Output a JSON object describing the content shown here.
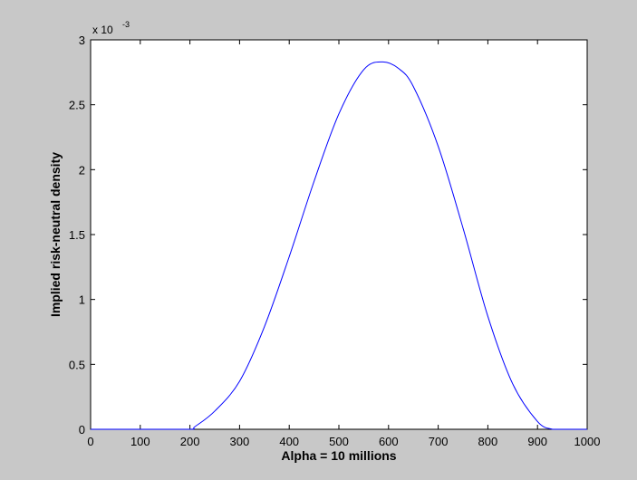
{
  "chart_data": {
    "type": "line",
    "title": "",
    "xlabel": "Alpha = 10 millions",
    "ylabel": "Implied risk-neutral density",
    "y_exponent_base": "x 10",
    "y_exponent_power": "-3",
    "xlim": [
      0,
      1000
    ],
    "ylim": [
      0,
      3
    ],
    "y_scale_note": "values in units of 10^-3",
    "xticks": [
      0,
      100,
      200,
      300,
      400,
      500,
      600,
      700,
      800,
      900,
      1000
    ],
    "yticks": [
      0,
      0.5,
      1,
      1.5,
      2,
      2.5,
      3
    ],
    "grid": false,
    "legend": "none",
    "background_color": "#c8c8c8",
    "axes_color": "#ffffff",
    "series": [
      {
        "color": "#0000ff",
        "x": [
          0,
          100,
          200,
          210,
          250,
          300,
          350,
          400,
          450,
          500,
          550,
          588,
          620,
          650,
          700,
          750,
          800,
          850,
          900,
          930,
          950,
          1000
        ],
        "y": [
          0,
          0,
          0,
          0.02,
          0.14,
          0.37,
          0.79,
          1.33,
          1.91,
          2.43,
          2.77,
          2.83,
          2.78,
          2.64,
          2.18,
          1.55,
          0.87,
          0.35,
          0.06,
          0.0,
          0,
          0
        ]
      }
    ]
  }
}
